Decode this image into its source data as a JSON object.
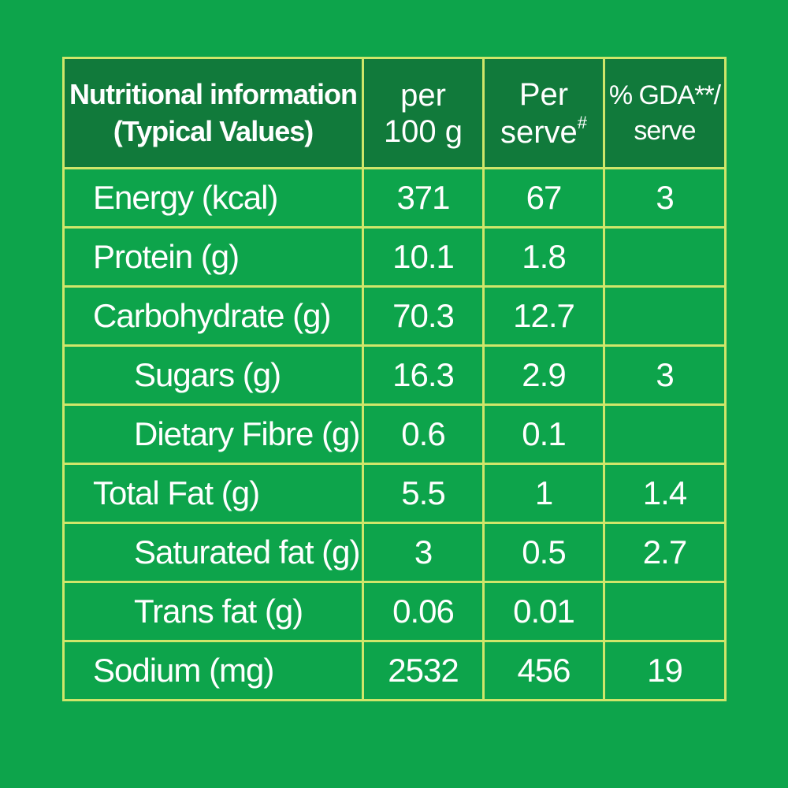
{
  "colors": {
    "background": "#0da44b",
    "header_background": "#117a3b",
    "border": "#cfe66a",
    "text": "#ffffff"
  },
  "header": {
    "name_line1": "Nutritional information",
    "name_line2": "(Typical Values)",
    "per100_line1": "per",
    "per100_line2": "100 g",
    "serve_line1": "Per",
    "serve_line2": "serve",
    "serve_mark": "#",
    "gda_line1": "% GDA**/",
    "gda_line2": "serve"
  },
  "rows": [
    {
      "name": "Energy (kcal)",
      "per100": "371",
      "serve": "67",
      "gda": "3"
    },
    {
      "name": "Protein (g)",
      "per100": "10.1",
      "serve": "1.8",
      "gda": ""
    },
    {
      "name": "Carbohydrate (g)",
      "per100": "70.3",
      "serve": "12.7",
      "gda": ""
    },
    {
      "name": "Sugars (g)",
      "per100": "16.3",
      "serve": "2.9",
      "gda": "3"
    },
    {
      "name": "Dietary Fibre (g)",
      "per100": "0.6",
      "serve": "0.1",
      "gda": ""
    },
    {
      "name": "Total Fat (g)",
      "per100": "5.5",
      "serve": "1",
      "gda": "1.4"
    },
    {
      "name": "Saturated fat (g)",
      "per100": "3",
      "serve": "0.5",
      "gda": "2.7"
    },
    {
      "name": "Trans fat (g)",
      "per100": "0.06",
      "serve": "0.01",
      "gda": ""
    },
    {
      "name": "Sodium (mg)",
      "per100": "2532",
      "serve": "456",
      "gda": "19"
    }
  ]
}
